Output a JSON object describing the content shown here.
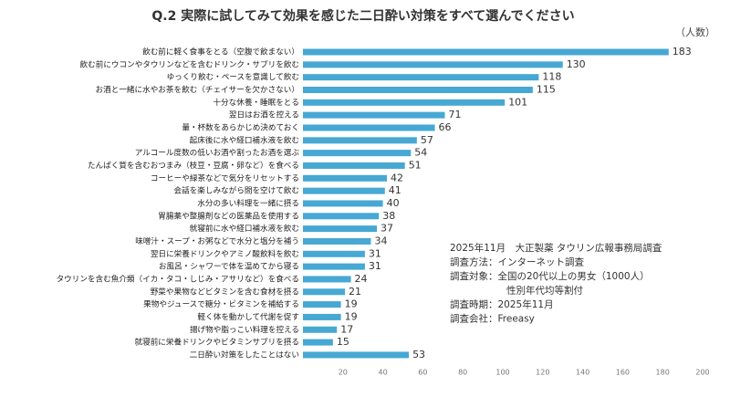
{
  "chart_data": {
    "type": "bar",
    "orientation": "horizontal",
    "title": "Q.2 実際に試してみて効果を感じた二日酔い対策をすべて選んでください",
    "unit_label": "（人数）",
    "categories": [
      "飲む前に軽く食事をとる（空腹で飲まない）",
      "飲む前にウコンやタウリンなどを含むドリンク・サプリを飲む",
      "ゆっくり飲む・ペースを意識して飲む",
      "お酒と一緒に水やお茶を飲む（チェイサーを欠かさない）",
      "十分な休養・睡眠をとる",
      "翌日はお酒を控える",
      "量・杯数をあらかじめ決めておく",
      "起床後に水や経口補水液を飲む",
      "アルコール度数の低いお酒や割ったお酒を選ぶ",
      "たんぱく質を含むおつまみ（枝豆・豆腐・卵など）を食べる",
      "コーヒーや緑茶などで気分をリセットする",
      "会話を楽しみながら間を空けて飲む",
      "水分の多い料理を一緒に摂る",
      "胃腸薬や整腸剤などの医薬品を使用する",
      "就寝前に水や経口補水液を飲む",
      "味噌汁・スープ・お粥などで水分と塩分を補う",
      "翌日に栄養ドリンクやアミノ酸飲料を飲む",
      "お風呂・シャワーで体を温めてから寝る",
      "タウリンを含む魚介類（イカ・タコ・しじみ・アサリなど）を食べる",
      "野菜や果物などビタミンを含む食材を摂る",
      "果物やジュースで糖分・ビタミンを補給する",
      "軽く体を動かして代謝を促す",
      "揚げ物や脂っこい料理を控える",
      "就寝前に栄養ドリンクやビタミンサプリを摂る",
      "二日酔い対策をしたことはない"
    ],
    "values": [
      183,
      130,
      118,
      115,
      101,
      71,
      66,
      57,
      54,
      51,
      42,
      41,
      40,
      38,
      37,
      34,
      31,
      31,
      24,
      21,
      19,
      19,
      17,
      15,
      53
    ],
    "color": "#46a8d3",
    "xlim": [
      0,
      200
    ],
    "xticks": [
      20,
      40,
      60,
      80,
      100,
      120,
      140,
      160,
      180,
      200
    ],
    "grid": false,
    "notes": [
      "2025年11月　大正製薬 タウリン広報事務局調査",
      "調査方法：インターネット調査",
      "調査対象：全国の20代以上の男女（1000人）",
      "性別年代均等割付",
      "調査時期：2025年11月",
      "調査会社：Freeasy"
    ]
  }
}
